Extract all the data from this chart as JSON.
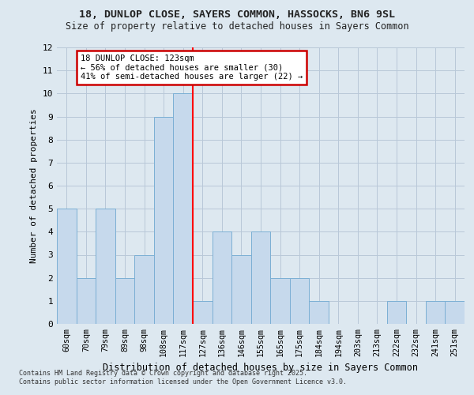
{
  "title1": "18, DUNLOP CLOSE, SAYERS COMMON, HASSOCKS, BN6 9SL",
  "title2": "Size of property relative to detached houses in Sayers Common",
  "xlabel": "Distribution of detached houses by size in Sayers Common",
  "ylabel": "Number of detached properties",
  "footer1": "Contains HM Land Registry data © Crown copyright and database right 2025.",
  "footer2": "Contains public sector information licensed under the Open Government Licence v3.0.",
  "categories": [
    "60sqm",
    "70sqm",
    "79sqm",
    "89sqm",
    "98sqm",
    "108sqm",
    "117sqm",
    "127sqm",
    "136sqm",
    "146sqm",
    "155sqm",
    "165sqm",
    "175sqm",
    "184sqm",
    "194sqm",
    "203sqm",
    "213sqm",
    "222sqm",
    "232sqm",
    "241sqm",
    "251sqm"
  ],
  "values": [
    5,
    2,
    5,
    2,
    3,
    9,
    10,
    1,
    4,
    3,
    4,
    2,
    2,
    1,
    0,
    0,
    0,
    1,
    0,
    1,
    1
  ],
  "bar_color": "#c6d9ec",
  "bar_edge_color": "#7bafd4",
  "grid_color": "#b8c8d8",
  "bg_color": "#dde8f0",
  "red_line_x": 6.5,
  "annotation_text": "18 DUNLOP CLOSE: 123sqm\n← 56% of detached houses are smaller (30)\n41% of semi-detached houses are larger (22) →",
  "annotation_box_color": "#ffffff",
  "annotation_box_edge": "#cc0000",
  "ylim": [
    0,
    12
  ],
  "yticks": [
    0,
    1,
    2,
    3,
    4,
    5,
    6,
    7,
    8,
    9,
    10,
    11,
    12
  ]
}
